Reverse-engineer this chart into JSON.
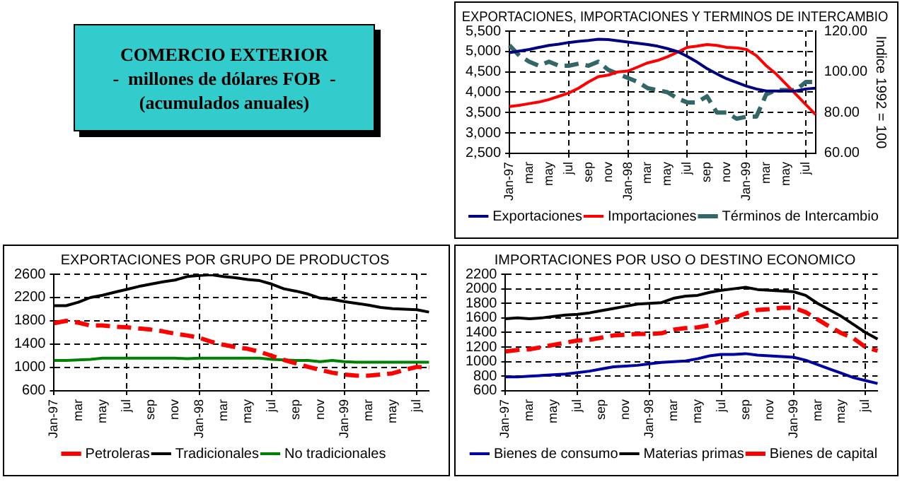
{
  "chart_data": [
    {
      "type": "other",
      "title": "COMERCIO EXTERIOR",
      "subtitle": "-  millones de dólares FOB  -",
      "annotations": [
        "(acumulados anuales)"
      ]
    },
    {
      "type": "line",
      "title": "EXPORTACIONES, IMPORTACIONES Y TERMINOS DE INTERCAMBIO",
      "y2label": "Indice 1992 = 100",
      "categories": [
        "Jan-97",
        null,
        "mar",
        null,
        "may",
        null,
        "jul",
        null,
        "sep",
        null,
        "nov",
        null,
        "Jan-98",
        null,
        "mar",
        null,
        "may",
        null,
        "jul",
        null,
        "sep",
        null,
        "nov",
        null,
        "Jan-99",
        null,
        "mar",
        null,
        "may",
        null,
        "jul",
        null
      ],
      "ylim": [
        2500,
        5500
      ],
      "yticks": [
        {
          "value": 2500,
          "label": "2,500"
        },
        {
          "value": 3000,
          "label": "3,000"
        },
        {
          "value": 3500,
          "label": "3,500"
        },
        {
          "value": 4000,
          "label": "4,000"
        },
        {
          "value": 4500,
          "label": "4,500"
        },
        {
          "value": 5000,
          "label": "5,000"
        },
        {
          "value": 5500,
          "label": "5,500"
        }
      ],
      "y2lim": [
        60,
        120
      ],
      "y2ticks": [
        {
          "value": 60,
          "label": "60.00"
        },
        {
          "value": 80,
          "label": "80.00"
        },
        {
          "value": 100,
          "label": "100.00"
        },
        {
          "value": 120,
          "label": "120.00"
        }
      ],
      "grid": true,
      "legend": "bottom",
      "marker": "none",
      "series": [
        {
          "name": "Exportaciones",
          "color": "#000080",
          "line_style": "solid",
          "values": [
            4970,
            5010,
            5050,
            5100,
            5150,
            5180,
            5220,
            5250,
            5270,
            5300,
            5290,
            5260,
            5230,
            5200,
            5170,
            5130,
            5070,
            5000,
            4880,
            4740,
            4580,
            4450,
            4330,
            4240,
            4150,
            4080,
            4030,
            4030,
            4030,
            4030,
            4080,
            4100
          ]
        },
        {
          "name": "Importaciones",
          "color": "#ff0000",
          "line_style": "solid",
          "values": [
            3650,
            3680,
            3720,
            3760,
            3820,
            3900,
            3980,
            4100,
            4250,
            4380,
            4420,
            4500,
            4520,
            4620,
            4720,
            4780,
            4870,
            4980,
            5100,
            5130,
            5170,
            5150,
            5100,
            5090,
            5050,
            4900,
            4650,
            4450,
            4200,
            3950,
            3700,
            3450
          ]
        },
        {
          "name": "Términos de Intercambio",
          "color": "#336666",
          "line_style": "dashed",
          "axis": "y2",
          "values": [
            113,
            108,
            105,
            103,
            105,
            103,
            103,
            104,
            103,
            105,
            101,
            99,
            97,
            95,
            92,
            91,
            90,
            87,
            85,
            85,
            88,
            80,
            80,
            77,
            78,
            78,
            89,
            91,
            91,
            91,
            95,
            95
          ]
        }
      ]
    },
    {
      "type": "line",
      "title": "EXPORTACIONES POR GRUPO DE PRODUCTOS",
      "categories": [
        "Jan-97",
        null,
        "mar",
        null,
        "may",
        null,
        "jul",
        null,
        "sep",
        null,
        "nov",
        null,
        "Jan-98",
        null,
        "mar",
        null,
        "may",
        null,
        "jul",
        null,
        "sep",
        null,
        "nov",
        null,
        "Jan-99",
        null,
        "mar",
        null,
        "may",
        null,
        "jul",
        null
      ],
      "ylim": [
        600,
        2600
      ],
      "yticks": [
        600,
        1000,
        1400,
        1800,
        2200,
        2600
      ],
      "grid": true,
      "legend": "bottom",
      "marker": "none",
      "series": [
        {
          "name": "Petroleras",
          "color": "#ff0000",
          "line_style": "dashed",
          "values": [
            1760,
            1800,
            1770,
            1720,
            1720,
            1700,
            1690,
            1670,
            1650,
            1620,
            1580,
            1550,
            1510,
            1440,
            1390,
            1350,
            1320,
            1270,
            1200,
            1130,
            1070,
            1010,
            960,
            910,
            880,
            860,
            860,
            880,
            900,
            960,
            1010,
            1000
          ]
        },
        {
          "name": "Tradicionales",
          "color": "#000000",
          "line_style": "solid",
          "values": [
            2060,
            2060,
            2120,
            2200,
            2240,
            2290,
            2340,
            2390,
            2430,
            2470,
            2500,
            2560,
            2580,
            2590,
            2560,
            2540,
            2510,
            2490,
            2430,
            2350,
            2310,
            2260,
            2190,
            2170,
            2130,
            2100,
            2070,
            2030,
            2010,
            2000,
            1990,
            1950
          ]
        },
        {
          "name": "No tradicionales",
          "color": "#008000",
          "line_style": "solid",
          "values": [
            1120,
            1120,
            1130,
            1140,
            1160,
            1160,
            1160,
            1160,
            1160,
            1160,
            1160,
            1150,
            1160,
            1160,
            1160,
            1160,
            1160,
            1160,
            1140,
            1130,
            1120,
            1120,
            1100,
            1120,
            1100,
            1090,
            1090,
            1090,
            1090,
            1090,
            1090,
            1090
          ]
        }
      ]
    },
    {
      "type": "line",
      "title": "IMPORTACIONES POR USO O DESTINO ECONOMICO",
      "categories": [
        "Jan-97",
        null,
        "mar",
        null,
        "may",
        null,
        "jul",
        null,
        "sep",
        null,
        "nov",
        null,
        "Jan-98",
        null,
        "mar",
        null,
        "may",
        null,
        "jul",
        null,
        "sep",
        null,
        "nov",
        null,
        "Jan-99",
        null,
        "mar",
        null,
        "may",
        null,
        "jul",
        null
      ],
      "ylim": [
        600,
        2200
      ],
      "yticks": [
        600,
        800,
        1000,
        1200,
        1400,
        1600,
        1800,
        2000,
        2200
      ],
      "grid": true,
      "legend": "bottom",
      "marker": "none",
      "series": [
        {
          "name": "Bienes de consumo",
          "color": "#0000a0",
          "line_style": "solid",
          "values": [
            790,
            790,
            800,
            810,
            820,
            830,
            850,
            870,
            900,
            930,
            940,
            950,
            970,
            990,
            1000,
            1010,
            1040,
            1080,
            1100,
            1100,
            1110,
            1090,
            1080,
            1070,
            1060,
            1020,
            960,
            900,
            840,
            780,
            740,
            700
          ]
        },
        {
          "name": "Materias primas",
          "color": "#000000",
          "line_style": "solid",
          "values": [
            1590,
            1600,
            1590,
            1600,
            1620,
            1640,
            1650,
            1670,
            1700,
            1730,
            1760,
            1790,
            1800,
            1810,
            1870,
            1900,
            1910,
            1950,
            1980,
            2000,
            2020,
            1990,
            1980,
            1970,
            1960,
            1910,
            1800,
            1710,
            1620,
            1510,
            1400,
            1310
          ]
        },
        {
          "name": "Bienes de capital",
          "color": "#ff0000",
          "line_style": "dashed",
          "values": [
            1140,
            1160,
            1170,
            1200,
            1230,
            1260,
            1290,
            1300,
            1330,
            1360,
            1370,
            1380,
            1380,
            1390,
            1440,
            1460,
            1470,
            1500,
            1560,
            1600,
            1660,
            1710,
            1720,
            1740,
            1740,
            1680,
            1580,
            1480,
            1390,
            1320,
            1200,
            1150
          ]
        }
      ]
    }
  ]
}
